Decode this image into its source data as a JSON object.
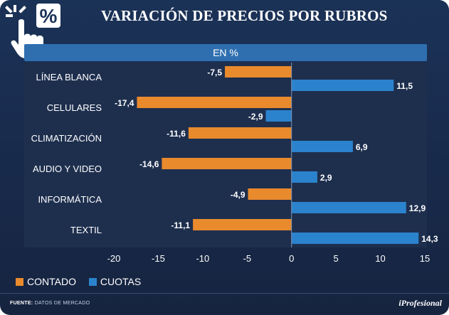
{
  "header": {
    "title": "VARIACIÓN DE PRECIOS POR RUBROS",
    "subtitle": "EN %",
    "badge_symbol": "%"
  },
  "colors": {
    "contado": "#e98a2d",
    "cuotas": "#2b83cd",
    "plot_bg": "#1e2f4e",
    "panel_bg": "#203456"
  },
  "chart_data": {
    "type": "bar",
    "orientation": "horizontal",
    "title": "VARIACIÓN DE PRECIOS POR RUBROS",
    "subtitle": "EN %",
    "categories": [
      "LÍNEA BLANCA",
      "CELULARES",
      "CLIMATIZACIÓN",
      "AUDIO Y VIDEO",
      "INFORMÁTICA",
      "TEXTIL"
    ],
    "series": [
      {
        "name": "CONTADO",
        "values": [
          -7.5,
          -17.4,
          -11.6,
          -14.6,
          -4.9,
          -11.1
        ]
      },
      {
        "name": "CUOTAS",
        "values": [
          11.5,
          -2.9,
          6.9,
          2.9,
          12.9,
          14.3
        ]
      }
    ],
    "value_labels": {
      "CONTADO": [
        "-7,5",
        "-17,4",
        "-11,6",
        "-14,6",
        "-4,9",
        "-11,1"
      ],
      "CUOTAS": [
        "11,5",
        "-2,9",
        "6,9",
        "2,9",
        "12,9",
        "14,3"
      ]
    },
    "xlim": [
      -20,
      15
    ],
    "xticks": [
      -20,
      -15,
      -10,
      -5,
      0,
      5,
      10,
      15
    ],
    "xtick_labels": [
      "-20",
      "-15",
      "-10",
      "-5",
      "0",
      "5",
      "10",
      "15"
    ],
    "xlabel": "",
    "ylabel": "",
    "legend_position": "bottom-left",
    "grid": false
  },
  "legend": [
    {
      "label": "CONTADO"
    },
    {
      "label": "CUOTAS"
    }
  ],
  "footer": {
    "source_label": "FUENTE:",
    "source_text": "DATOS DE MERCADO",
    "brand": "iProfesional"
  }
}
